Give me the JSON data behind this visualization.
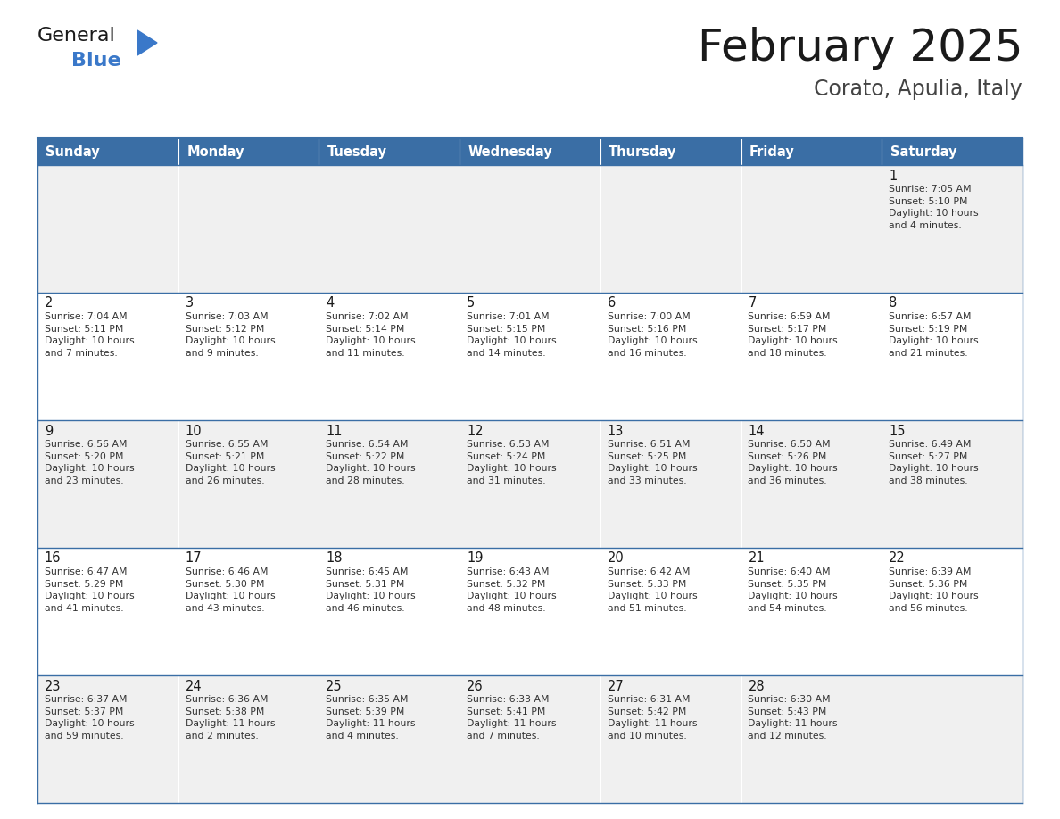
{
  "title": "February 2025",
  "subtitle": "Corato, Apulia, Italy",
  "days_of_week": [
    "Sunday",
    "Monday",
    "Tuesday",
    "Wednesday",
    "Thursday",
    "Friday",
    "Saturday"
  ],
  "header_bg": "#3A6EA5",
  "header_text": "#FFFFFF",
  "row_bg_odd": "#F0F0F0",
  "row_bg_even": "#FFFFFF",
  "cell_text": "#333333",
  "day_num_color": "#1a1a1a",
  "border_color": "#3A6EA5",
  "title_color": "#1a1a1a",
  "subtitle_color": "#444444",
  "logo_general_color": "#1a1a1a",
  "logo_blue_color": "#3A78C9",
  "calendar_data": [
    [
      {
        "day": null,
        "info": null
      },
      {
        "day": null,
        "info": null
      },
      {
        "day": null,
        "info": null
      },
      {
        "day": null,
        "info": null
      },
      {
        "day": null,
        "info": null
      },
      {
        "day": null,
        "info": null
      },
      {
        "day": "1",
        "info": "Sunrise: 7:05 AM\nSunset: 5:10 PM\nDaylight: 10 hours\nand 4 minutes."
      }
    ],
    [
      {
        "day": "2",
        "info": "Sunrise: 7:04 AM\nSunset: 5:11 PM\nDaylight: 10 hours\nand 7 minutes."
      },
      {
        "day": "3",
        "info": "Sunrise: 7:03 AM\nSunset: 5:12 PM\nDaylight: 10 hours\nand 9 minutes."
      },
      {
        "day": "4",
        "info": "Sunrise: 7:02 AM\nSunset: 5:14 PM\nDaylight: 10 hours\nand 11 minutes."
      },
      {
        "day": "5",
        "info": "Sunrise: 7:01 AM\nSunset: 5:15 PM\nDaylight: 10 hours\nand 14 minutes."
      },
      {
        "day": "6",
        "info": "Sunrise: 7:00 AM\nSunset: 5:16 PM\nDaylight: 10 hours\nand 16 minutes."
      },
      {
        "day": "7",
        "info": "Sunrise: 6:59 AM\nSunset: 5:17 PM\nDaylight: 10 hours\nand 18 minutes."
      },
      {
        "day": "8",
        "info": "Sunrise: 6:57 AM\nSunset: 5:19 PM\nDaylight: 10 hours\nand 21 minutes."
      }
    ],
    [
      {
        "day": "9",
        "info": "Sunrise: 6:56 AM\nSunset: 5:20 PM\nDaylight: 10 hours\nand 23 minutes."
      },
      {
        "day": "10",
        "info": "Sunrise: 6:55 AM\nSunset: 5:21 PM\nDaylight: 10 hours\nand 26 minutes."
      },
      {
        "day": "11",
        "info": "Sunrise: 6:54 AM\nSunset: 5:22 PM\nDaylight: 10 hours\nand 28 minutes."
      },
      {
        "day": "12",
        "info": "Sunrise: 6:53 AM\nSunset: 5:24 PM\nDaylight: 10 hours\nand 31 minutes."
      },
      {
        "day": "13",
        "info": "Sunrise: 6:51 AM\nSunset: 5:25 PM\nDaylight: 10 hours\nand 33 minutes."
      },
      {
        "day": "14",
        "info": "Sunrise: 6:50 AM\nSunset: 5:26 PM\nDaylight: 10 hours\nand 36 minutes."
      },
      {
        "day": "15",
        "info": "Sunrise: 6:49 AM\nSunset: 5:27 PM\nDaylight: 10 hours\nand 38 minutes."
      }
    ],
    [
      {
        "day": "16",
        "info": "Sunrise: 6:47 AM\nSunset: 5:29 PM\nDaylight: 10 hours\nand 41 minutes."
      },
      {
        "day": "17",
        "info": "Sunrise: 6:46 AM\nSunset: 5:30 PM\nDaylight: 10 hours\nand 43 minutes."
      },
      {
        "day": "18",
        "info": "Sunrise: 6:45 AM\nSunset: 5:31 PM\nDaylight: 10 hours\nand 46 minutes."
      },
      {
        "day": "19",
        "info": "Sunrise: 6:43 AM\nSunset: 5:32 PM\nDaylight: 10 hours\nand 48 minutes."
      },
      {
        "day": "20",
        "info": "Sunrise: 6:42 AM\nSunset: 5:33 PM\nDaylight: 10 hours\nand 51 minutes."
      },
      {
        "day": "21",
        "info": "Sunrise: 6:40 AM\nSunset: 5:35 PM\nDaylight: 10 hours\nand 54 minutes."
      },
      {
        "day": "22",
        "info": "Sunrise: 6:39 AM\nSunset: 5:36 PM\nDaylight: 10 hours\nand 56 minutes."
      }
    ],
    [
      {
        "day": "23",
        "info": "Sunrise: 6:37 AM\nSunset: 5:37 PM\nDaylight: 10 hours\nand 59 minutes."
      },
      {
        "day": "24",
        "info": "Sunrise: 6:36 AM\nSunset: 5:38 PM\nDaylight: 11 hours\nand 2 minutes."
      },
      {
        "day": "25",
        "info": "Sunrise: 6:35 AM\nSunset: 5:39 PM\nDaylight: 11 hours\nand 4 minutes."
      },
      {
        "day": "26",
        "info": "Sunrise: 6:33 AM\nSunset: 5:41 PM\nDaylight: 11 hours\nand 7 minutes."
      },
      {
        "day": "27",
        "info": "Sunrise: 6:31 AM\nSunset: 5:42 PM\nDaylight: 11 hours\nand 10 minutes."
      },
      {
        "day": "28",
        "info": "Sunrise: 6:30 AM\nSunset: 5:43 PM\nDaylight: 11 hours\nand 12 minutes."
      },
      {
        "day": null,
        "info": null
      }
    ]
  ]
}
